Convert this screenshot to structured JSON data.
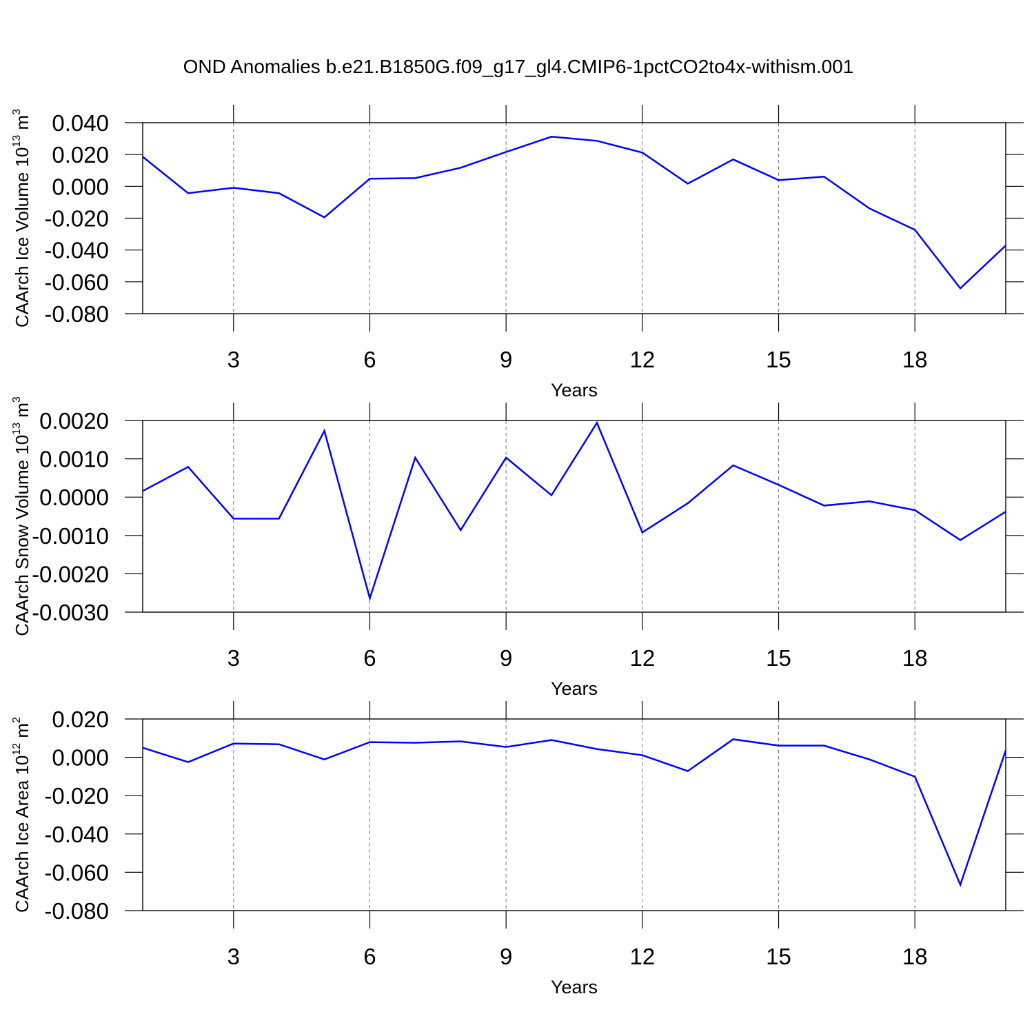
{
  "chart_data": [
    {
      "type": "line",
      "title": "OND Anomalies b.e21.B1850G.f09_g17_gl4.CMIP6-1pctCO2to4x-withism.001",
      "ylabel": "CAArch Ice Volume 10",
      "ylabel_exponent": "13",
      "ylabel_unit": " m",
      "ylabel_unit_exponent": "3",
      "xlabel": "Years",
      "x": [
        1,
        2,
        3,
        4,
        5,
        6,
        7,
        8,
        9,
        10,
        11,
        12,
        13,
        14,
        15,
        16,
        17,
        18,
        19,
        20
      ],
      "series": [
        {
          "color": "#0000ff",
          "values": [
            0.0186,
            -0.0043,
            -0.0009,
            -0.0043,
            -0.0195,
            0.0048,
            0.0052,
            0.0117,
            0.0216,
            0.0312,
            0.0286,
            0.0212,
            0.0017,
            0.0169,
            0.0039,
            0.0061,
            -0.0139,
            -0.0273,
            -0.0641,
            -0.0372
          ]
        }
      ],
      "xlim": [
        1,
        20
      ],
      "xticks": [
        3,
        6,
        9,
        12,
        15,
        18
      ],
      "ylim": [
        -0.08,
        0.04
      ],
      "yticks": [
        {
          "value": -0.08,
          "label": "-0.080"
        },
        {
          "value": -0.06,
          "label": "-0.060"
        },
        {
          "value": -0.04,
          "label": "-0.040"
        },
        {
          "value": -0.02,
          "label": "-0.020"
        },
        {
          "value": 0,
          "label": "0.000"
        },
        {
          "value": 0.02,
          "label": "0.020"
        },
        {
          "value": 0.04,
          "label": "0.040"
        }
      ],
      "grid": true
    },
    {
      "type": "line",
      "ylabel": "CAArch Snow Volume 10",
      "ylabel_exponent": "13",
      "ylabel_unit": " m",
      "ylabel_unit_exponent": "3",
      "xlabel": "Years",
      "x": [
        1,
        2,
        3,
        4,
        5,
        6,
        7,
        8,
        9,
        10,
        11,
        12,
        13,
        14,
        15,
        16,
        17,
        18,
        19,
        20
      ],
      "series": [
        {
          "color": "#0000ff",
          "values": [
            0.00016,
            0.00079,
            -0.00056,
            -0.00056,
            0.00173,
            -0.00264,
            0.00103,
            -0.00086,
            0.00103,
            5e-05,
            0.00194,
            -0.00092,
            -0.00016,
            0.00083,
            0.00032,
            -0.00022,
            -0.00011,
            -0.00034,
            -0.00112,
            -0.00038
          ]
        }
      ],
      "xlim": [
        1,
        20
      ],
      "xticks": [
        3,
        6,
        9,
        12,
        15,
        18
      ],
      "ylim": [
        -0.003,
        0.002
      ],
      "yticks": [
        {
          "value": -0.003,
          "label": "-0.0030"
        },
        {
          "value": -0.002,
          "label": "-0.0020"
        },
        {
          "value": -0.001,
          "label": "-0.0010"
        },
        {
          "value": 0,
          "label": "0.0000"
        },
        {
          "value": 0.001,
          "label": "0.0010"
        },
        {
          "value": 0.002,
          "label": "0.0020"
        }
      ],
      "grid": true
    },
    {
      "type": "line",
      "ylabel": "CAArch Ice Area 10",
      "ylabel_exponent": "12",
      "ylabel_unit": " m",
      "ylabel_unit_exponent": "2",
      "xlabel": "Years",
      "x": [
        1,
        2,
        3,
        4,
        5,
        6,
        7,
        8,
        9,
        10,
        11,
        12,
        13,
        14,
        15,
        16,
        17,
        18,
        19,
        20
      ],
      "series": [
        {
          "color": "#0000ff",
          "values": [
            0.005,
            -0.0025,
            0.0072,
            0.0068,
            -0.0011,
            0.0079,
            0.0076,
            0.0083,
            0.0054,
            0.009,
            0.0043,
            0.0011,
            -0.0072,
            0.0094,
            0.0061,
            0.0061,
            -0.0011,
            -0.0101,
            -0.0665,
            0.0036
          ]
        }
      ],
      "xlim": [
        1,
        20
      ],
      "xticks": [
        3,
        6,
        9,
        12,
        15,
        18
      ],
      "ylim": [
        -0.08,
        0.02
      ],
      "yticks": [
        {
          "value": -0.08,
          "label": "-0.080"
        },
        {
          "value": -0.06,
          "label": "-0.060"
        },
        {
          "value": -0.04,
          "label": "-0.040"
        },
        {
          "value": -0.02,
          "label": "-0.020"
        },
        {
          "value": 0,
          "label": "0.000"
        },
        {
          "value": 0.02,
          "label": "0.020"
        }
      ],
      "grid": true
    }
  ]
}
